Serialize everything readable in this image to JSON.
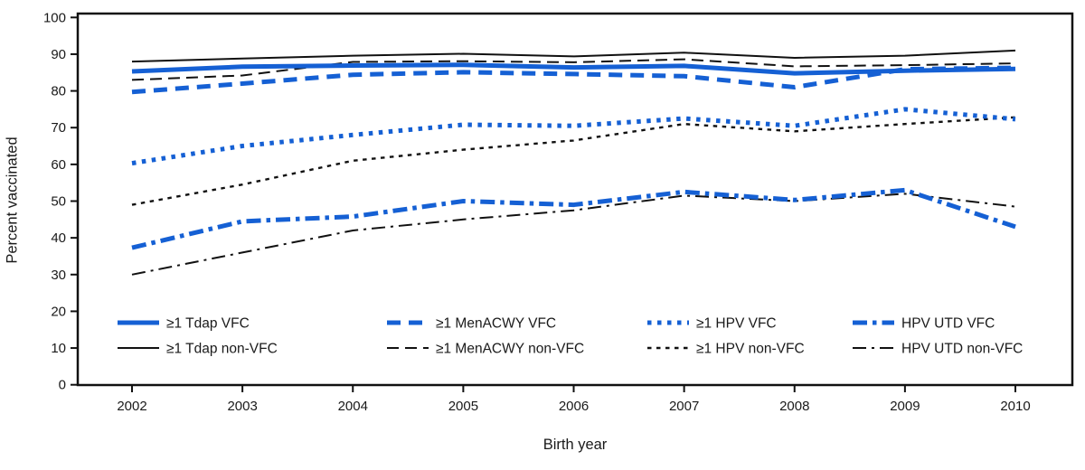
{
  "figure": {
    "ylabel": "Percent vaccinated",
    "xlabel": "Birth year"
  },
  "colors": {
    "vfc_blue": "#1560d4",
    "nonvfc_black": "#111111",
    "background": "#ffffff",
    "axis": "#111111"
  },
  "chart_data": {
    "type": "line",
    "title": "",
    "xlabel": "Birth year",
    "ylabel": "Percent vaccinated",
    "x": [
      2002,
      2003,
      2004,
      2005,
      2006,
      2007,
      2008,
      2009,
      2010
    ],
    "ylim": [
      0,
      100
    ],
    "yticks": [
      0,
      10,
      20,
      30,
      40,
      50,
      60,
      70,
      80,
      90,
      100
    ],
    "grid": false,
    "frame": "full box, ticks outside left and bottom",
    "legend_position": "inside plot, lower left, 2 rows x 4 columns",
    "series": [
      {
        "name": "≥1 Tdap non-VFC",
        "color": "#111111",
        "style": "solid",
        "width": "thin",
        "legend_row": 1,
        "legend_col": 0,
        "values": [
          88.0,
          88.8,
          89.6,
          90.1,
          89.4,
          90.4,
          89.0,
          89.6,
          91.0
        ]
      },
      {
        "name": "≥1 MenACWY non-VFC",
        "color": "#111111",
        "style": "long-dash",
        "width": "thin",
        "legend_row": 1,
        "legend_col": 1,
        "values": [
          83.0,
          84.2,
          87.9,
          88.1,
          87.8,
          88.6,
          86.7,
          87.0,
          87.5
        ]
      },
      {
        "name": "≥1 HPV non-VFC",
        "color": "#111111",
        "style": "short-dash",
        "width": "thin",
        "legend_row": 1,
        "legend_col": 2,
        "values": [
          49.0,
          54.5,
          61.0,
          64.0,
          66.5,
          71.0,
          69.0,
          71.0,
          72.8
        ]
      },
      {
        "name": "HPV UTD non-VFC",
        "color": "#111111",
        "style": "dash-dot",
        "width": "thin",
        "legend_row": 1,
        "legend_col": 3,
        "values": [
          30.0,
          36.0,
          42.0,
          45.0,
          47.5,
          51.5,
          50.0,
          52.0,
          48.5
        ]
      },
      {
        "name": "≥1 Tdap VFC",
        "color": "#1560d4",
        "style": "solid",
        "width": "thick",
        "legend_row": 0,
        "legend_col": 0,
        "values": [
          85.3,
          86.6,
          86.9,
          87.1,
          86.4,
          86.8,
          84.8,
          85.5,
          86.0
        ]
      },
      {
        "name": "≥1 MenACWY VFC",
        "color": "#1560d4",
        "style": "long-dash",
        "width": "thick",
        "legend_row": 0,
        "legend_col": 1,
        "values": [
          79.7,
          82.0,
          84.4,
          85.1,
          84.6,
          84.0,
          81.0,
          85.9,
          86.3
        ]
      },
      {
        "name": "≥1 HPV VFC",
        "color": "#1560d4",
        "style": "dotted",
        "width": "thick",
        "legend_row": 0,
        "legend_col": 2,
        "values": [
          60.3,
          65.0,
          68.0,
          70.8,
          70.5,
          72.5,
          70.5,
          75.0,
          72.3
        ]
      },
      {
        "name": "HPV UTD VFC",
        "color": "#1560d4",
        "style": "dash-dot",
        "width": "thick",
        "legend_row": 0,
        "legend_col": 3,
        "values": [
          37.3,
          44.5,
          45.8,
          50.0,
          49.0,
          52.5,
          50.3,
          53.0,
          43.0
        ]
      }
    ]
  }
}
